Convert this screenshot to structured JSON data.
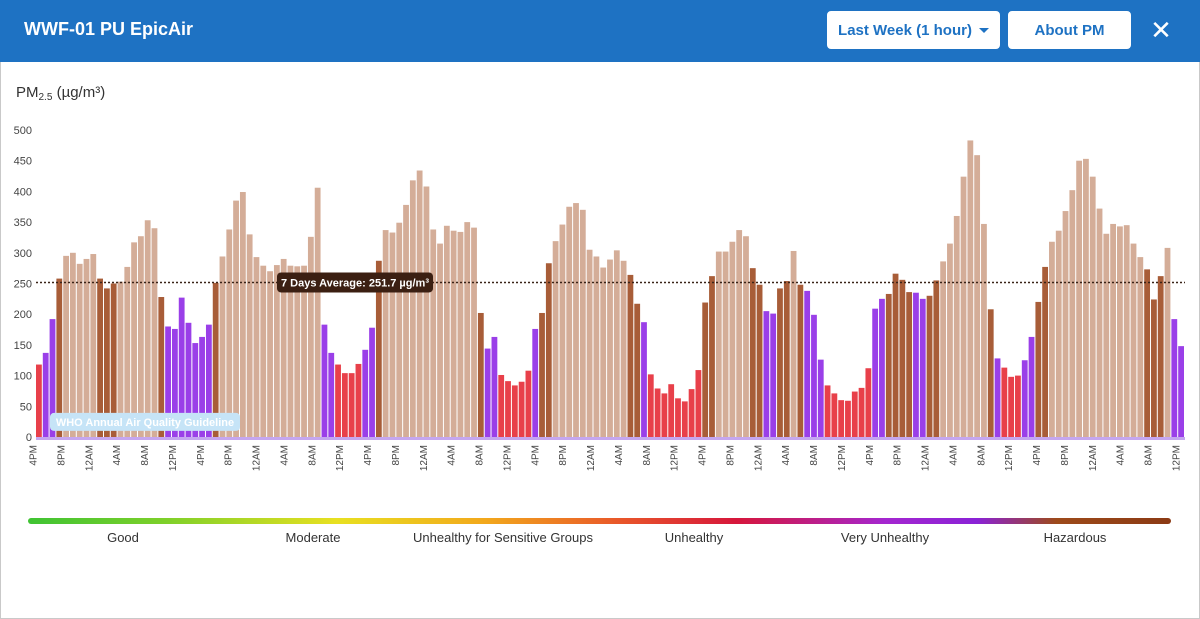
{
  "header": {
    "title": "WWF-01 PU EpicAir",
    "range_label": "Last Week (1 hour)",
    "about_label": "About PM",
    "close_glyph": "✕"
  },
  "chart_data": {
    "type": "bar",
    "ylabel_main": "PM",
    "ylabel_sub": "2.5",
    "ylabel_unit": " (µg/m³)",
    "ylim": [
      0,
      500
    ],
    "yticks": [
      0,
      50,
      100,
      150,
      200,
      250,
      300,
      350,
      400,
      450,
      500
    ],
    "xtick_labels": [
      "4PM",
      "8PM",
      "12AM",
      "4AM",
      "8AM",
      "12PM",
      "4PM",
      "8PM",
      "12AM",
      "4AM",
      "8AM",
      "12PM",
      "4PM",
      "8PM",
      "12AM",
      "4AM",
      "8AM",
      "12PM",
      "4PM",
      "8PM",
      "12AM",
      "4AM",
      "8AM",
      "12PM",
      "4PM",
      "8PM",
      "12AM",
      "4AM",
      "8AM",
      "12PM",
      "4PM",
      "8PM",
      "12AM",
      "4AM",
      "8AM",
      "12PM",
      "4PM",
      "8PM",
      "12AM",
      "4AM",
      "8AM",
      "12PM"
    ],
    "average_value": 251.7,
    "average_label": "7 Days Average: 251.7 µg/m³",
    "who_label": "WHO Annual Air Quality Guideline",
    "who_value": 5,
    "values": [
      118,
      137,
      192,
      258,
      295,
      300,
      282,
      290,
      298,
      258,
      242,
      250,
      253,
      277,
      317,
      327,
      353,
      340,
      228,
      180,
      176,
      227,
      186,
      153,
      163,
      183,
      251,
      294,
      338,
      385,
      399,
      330,
      293,
      279,
      270,
      280,
      290,
      279,
      278,
      279,
      326,
      406,
      183,
      137,
      118,
      104,
      104,
      119,
      142,
      178,
      287,
      337,
      333,
      349,
      378,
      418,
      434,
      408,
      338,
      315,
      344,
      336,
      334,
      350,
      341,
      202,
      144,
      163,
      101,
      91,
      84,
      90,
      108,
      176,
      202,
      283,
      319,
      346,
      375,
      381,
      370,
      305,
      294,
      276,
      289,
      304,
      287,
      264,
      217,
      187,
      102,
      79,
      71,
      86,
      63,
      58,
      78,
      109,
      219,
      262,
      302,
      302,
      318,
      337,
      327,
      275,
      248,
      205,
      201,
      242,
      254,
      303,
      248,
      238,
      199,
      126,
      84,
      71,
      60,
      59,
      74,
      80,
      112,
      209,
      225,
      233,
      266,
      256,
      236,
      235,
      225,
      230,
      255,
      286,
      315,
      360,
      424,
      483,
      459,
      347,
      208,
      128,
      113,
      98,
      100,
      125,
      163,
      220,
      277,
      318,
      336,
      368,
      402,
      450,
      453,
      424,
      372,
      331,
      347,
      343,
      345,
      315,
      293,
      273,
      224,
      262,
      308,
      192,
      148
    ],
    "hazard_color": "#a85d38",
    "hazard_min": 301,
    "legend": [
      "Good",
      "Moderate",
      "Unhealthy for Sensitive Groups",
      "Unhealthy",
      "Very Unhealthy",
      "Hazardous"
    ],
    "colors": {
      "hazard_dark": "#a85d38",
      "hazard_light": "#d4ad98",
      "very_unhealthy": "#9a3fe8",
      "very_unhealthy_light": "#cf9bf2",
      "unhealthy": "#e8404a",
      "baseline": "#c5a6f0",
      "average_line": "#3a2418",
      "tooltip_bg": "#3b1f12",
      "who_bg": "#c6e4f7"
    }
  }
}
